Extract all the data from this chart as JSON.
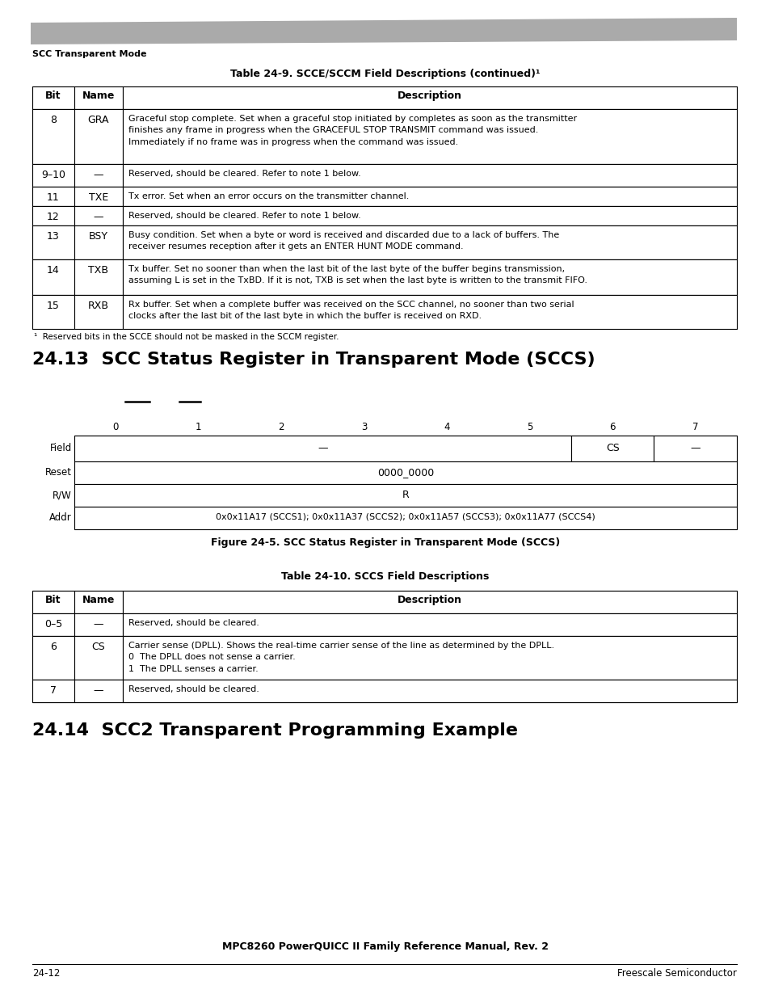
{
  "bg_color": "#ffffff",
  "header_text": "SCC Transparent Mode",
  "table1_title": "Table 24-9. SCCE/SCCM Field Descriptions (continued)¹",
  "table1_rows": [
    {
      "bit": "8",
      "name": "GRA",
      "desc_lines": [
        "Graceful stop complete. Set when a graceful stop initiated by completes as soon as the transmitter",
        "finishes any frame in progress when the GRACEFUL STOP TRANSMIT command was issued.",
        "Immediately if no frame was in progress when the command was issued."
      ]
    },
    {
      "bit": "9–10",
      "name": "—",
      "desc_lines": [
        "Reserved, should be cleared. Refer to note 1 below."
      ]
    },
    {
      "bit": "11",
      "name": "TXE",
      "desc_lines": [
        "Tx error. Set when an error occurs on the transmitter channel."
      ]
    },
    {
      "bit": "12",
      "name": "—",
      "desc_lines": [
        "Reserved, should be cleared. Refer to note 1 below."
      ]
    },
    {
      "bit": "13",
      "name": "BSY",
      "desc_lines": [
        "Busy condition. Set when a byte or word is received and discarded due to a lack of buffers. The",
        "receiver resumes reception after it gets an ENTER HUNT MODE command."
      ]
    },
    {
      "bit": "14",
      "name": "TXB",
      "desc_lines": [
        "Tx buffer. Set no sooner than when the last bit of the last byte of the buffer begins transmission,",
        "assuming L is set in the TxBD. If it is not, TXB is set when the last byte is written to the transmit FIFO."
      ]
    },
    {
      "bit": "15",
      "name": "RXB",
      "desc_lines": [
        "Rx buffer. Set when a complete buffer was received on the SCC channel, no sooner than two serial",
        "clocks after the last bit of the last byte in which the buffer is received on RXD."
      ]
    }
  ],
  "table1_footnote": "¹  Reserved bits in the SCCE should not be masked in the SCCM register.",
  "section13_title": "24.13  SCC Status Register in Transparent Mode (SCCS)",
  "reg_bits": [
    "0",
    "1",
    "2",
    "3",
    "4",
    "5",
    "6",
    "7"
  ],
  "reg_fields": [
    {
      "start": 0,
      "end": 5,
      "label": "—"
    },
    {
      "start": 6,
      "end": 6,
      "label": "CS"
    },
    {
      "start": 7,
      "end": 7,
      "label": "—"
    }
  ],
  "reg_reset": "0000_0000",
  "reg_rw": "R",
  "reg_addr": "0x0x11A17 (SCCS1); 0x0x11A37 (SCCS2); 0x0x11A57 (SCCS3); 0x0x11A77 (SCCS4)",
  "reg_caption": "Figure 24-5. SCC Status Register in Transparent Mode (SCCS)",
  "table2_title": "Table 24-10. SCCS Field Descriptions",
  "table2_rows": [
    {
      "bit": "0–5",
      "name": "—",
      "desc_lines": [
        "Reserved, should be cleared."
      ]
    },
    {
      "bit": "6",
      "name": "CS",
      "desc_lines": [
        "Carrier sense (DPLL). Shows the real-time carrier sense of the line as determined by the DPLL.",
        "0  The DPLL does not sense a carrier.",
        "1  The DPLL senses a carrier."
      ]
    },
    {
      "bit": "7",
      "name": "—",
      "desc_lines": [
        "Reserved, should be cleared."
      ]
    }
  ],
  "section14_title": "24.14  SCC2 Transparent Programming Example",
  "footer_center": "MPC8260 PowerQUICC II Family Reference Manual, Rev. 2",
  "footer_left": "24-12",
  "footer_right": "Freescale Semiconductor"
}
